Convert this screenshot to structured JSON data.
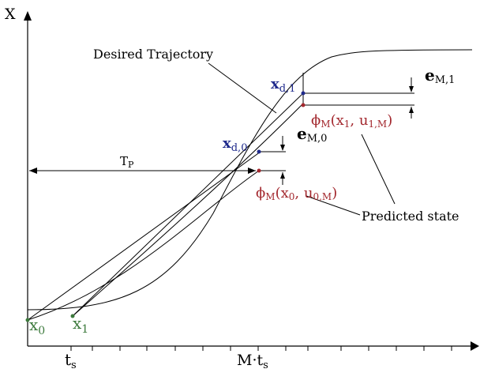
{
  "axes": {
    "y_label": "X",
    "x_tick_ts": "t",
    "x_tick_ts_sub": "s",
    "x_tick_M": "M·t",
    "x_tick_M_sub": "s"
  },
  "labels": {
    "desired_trajectory": "Desired Trajectory",
    "predicted_state": "Predicted state",
    "tp": "T",
    "tp_sub": "P"
  },
  "points": {
    "x0": {
      "base": "x",
      "sub": "0"
    },
    "x1": {
      "base": "x",
      "sub": "1"
    },
    "xd0": {
      "base": "x",
      "sub": "d,0"
    },
    "xd1": {
      "base": "x",
      "sub": "d,1"
    }
  },
  "errors": {
    "eM0": {
      "base": "e",
      "sub": "M,0"
    },
    "eM1": {
      "base": "e",
      "sub": "M,1"
    }
  },
  "predictions": {
    "phi0": {
      "phi": "ϕ",
      "phi_sub": "M",
      "open": "(x",
      "arg1_sub": "0",
      "mid": ", u",
      "arg2_sub": "0,M",
      "close": ")"
    },
    "phi1": {
      "phi": "ϕ",
      "phi_sub": "M",
      "open": "(x",
      "arg1_sub": "1",
      "mid": ", u",
      "arg2_sub": "1,M",
      "close": ")"
    }
  },
  "colors": {
    "blue": "#1f2a8c",
    "red": "#a3282e",
    "green": "#3d7a3d"
  }
}
